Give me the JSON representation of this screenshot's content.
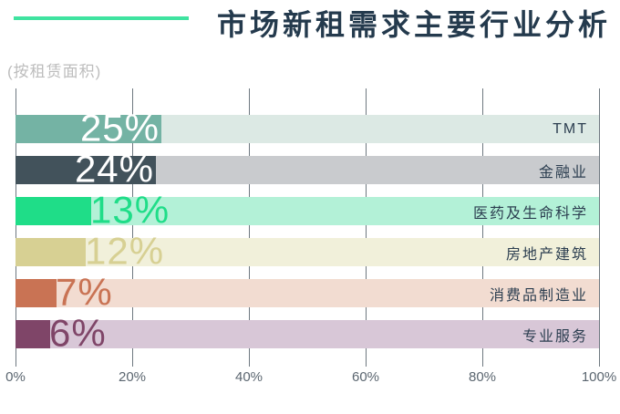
{
  "title": "市场新租需求主要行业分析",
  "subtitle": "(按租赁面积)",
  "accent_color": "#3fe3a0",
  "title_color": "#243a4d",
  "chart_data": {
    "type": "bar",
    "orientation": "horizontal",
    "title": "市场新租需求主要行业分析",
    "subtitle": "(按租赁面积)",
    "categories": [
      "TMT",
      "金融业",
      "医药及生命科学",
      "房地产建筑",
      "消费品制造业",
      "专业服务"
    ],
    "values": [
      25,
      24,
      13,
      12,
      7,
      6
    ],
    "xlim": [
      0,
      100
    ],
    "x_ticks": [
      "0%",
      "20%",
      "40%",
      "60%",
      "80%",
      "100%"
    ],
    "grid": "vertical",
    "legend": "none",
    "axis_label_color": "#5b6670",
    "gridline_color": "#6e7880",
    "category_label_color": "#2c3e50",
    "bars": [
      {
        "label": "TMT",
        "value": 25,
        "value_label": "25%",
        "fill": "#74b3a4",
        "track": "#dce9e4",
        "value_color": "#ffffff",
        "value_position": "inside"
      },
      {
        "label": "金融业",
        "value": 24,
        "value_label": "24%",
        "fill": "#42525b",
        "track": "#c9cbce",
        "value_color": "#ffffff",
        "value_position": "inside"
      },
      {
        "label": "医药及生命科学",
        "value": 13,
        "value_label": "13%",
        "fill": "#1fdd88",
        "track": "#b3f1d7",
        "value_color": "#1fdd88",
        "value_position": "after"
      },
      {
        "label": "房地产建筑",
        "value": 12,
        "value_label": "12%",
        "fill": "#d7d093",
        "track": "#f1f0da",
        "value_color": "#d7d093",
        "value_position": "after"
      },
      {
        "label": "消费品制造业",
        "value": 7,
        "value_label": "7%",
        "fill": "#c97354",
        "track": "#f2dcd1",
        "value_color": "#c97354",
        "value_position": "after"
      },
      {
        "label": "专业服务",
        "value": 6,
        "value_label": "6%",
        "fill": "#7f4568",
        "track": "#d8c7d7",
        "value_color": "#7f4568",
        "value_position": "after"
      }
    ]
  }
}
